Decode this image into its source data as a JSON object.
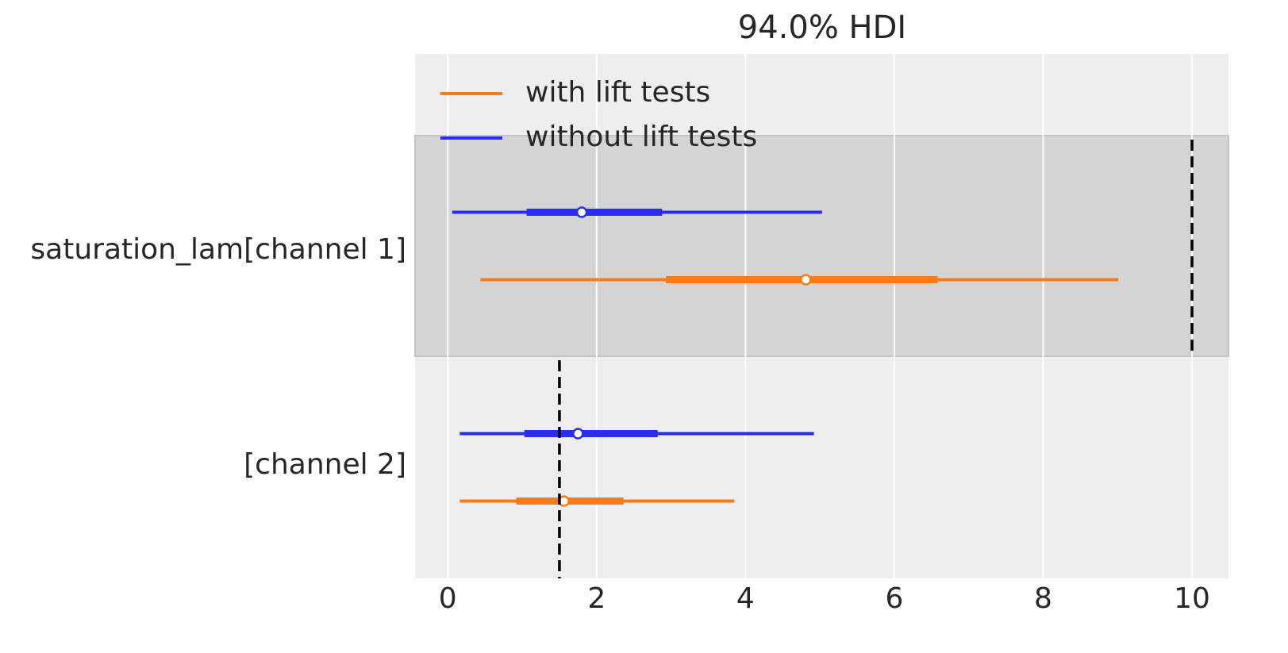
{
  "chart_data": {
    "type": "forest",
    "title": "94.0% HDI",
    "categories": [
      "saturation_lam[channel 1]",
      "[channel 2]"
    ],
    "series": [
      {
        "name": "with lift tests",
        "color": "#fa7c17",
        "low": [
          0.44,
          0.16
        ],
        "q_low": [
          2.93,
          0.92
        ],
        "median": [
          4.81,
          1.56
        ],
        "q_high": [
          6.58,
          2.36
        ],
        "high": [
          9.01,
          3.85
        ]
      },
      {
        "name": "without lift tests",
        "color": "#2a2eec",
        "low": [
          0.06,
          0.16
        ],
        "q_low": [
          1.06,
          1.03
        ],
        "median": [
          1.8,
          1.75
        ],
        "q_high": [
          2.88,
          2.82
        ],
        "high": [
          5.03,
          4.92
        ]
      }
    ],
    "reference": [
      10,
      1.5
    ],
    "xlim": [
      -0.44,
      10.49
    ],
    "xticks": [
      0,
      2,
      4,
      6,
      8,
      10
    ],
    "grid": true,
    "legend": "upper left"
  }
}
